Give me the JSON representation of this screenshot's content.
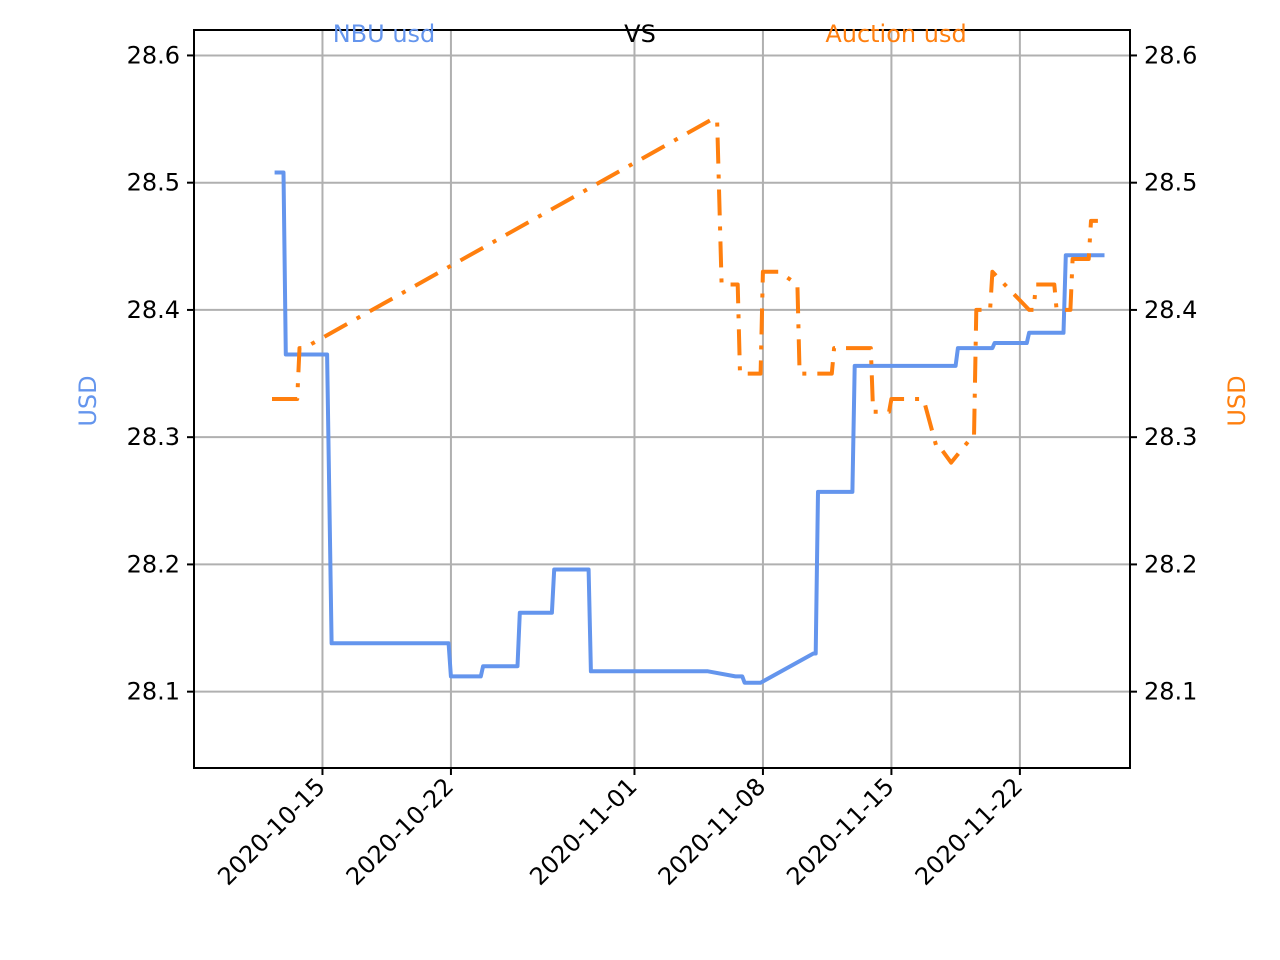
{
  "chart_data": {
    "type": "line",
    "header": {
      "left": "NBU usd",
      "middle": "VS",
      "right": "Auction usd"
    },
    "left_ylabel": "USD",
    "right_ylabel": "USD",
    "ylim": [
      28.04,
      28.62
    ],
    "yticks": [
      "28.1",
      "28.2",
      "28.3",
      "28.4",
      "28.5",
      "28.6"
    ],
    "xlim": [
      "2020-10-08",
      "2020-11-28"
    ],
    "xticks": [
      "2020-10-15",
      "2020-10-22",
      "2020-11-01",
      "2020-11-08",
      "2020-11-15",
      "2020-11-22"
    ],
    "grid": true,
    "colors": {
      "nbu": "#6495ed",
      "auction": "#ff7f0e",
      "axis": "#000000",
      "grid": "#b0b0b0"
    },
    "series": [
      {
        "name": "NBU usd",
        "style": "solid",
        "color": "#6495ed",
        "points": [
          [
            "2020-10-12 12:00",
            28.508
          ],
          [
            "2020-10-12 21:00",
            28.508
          ],
          [
            "2020-10-13 00:00",
            28.365
          ],
          [
            "2020-10-15 06:00",
            28.365
          ],
          [
            "2020-10-15 12:00",
            28.138
          ],
          [
            "2020-10-21 21:00",
            28.138
          ],
          [
            "2020-10-22 00:00",
            28.112
          ],
          [
            "2020-10-23 15:00",
            28.112
          ],
          [
            "2020-10-23 18:00",
            28.12
          ],
          [
            "2020-10-25 15:00",
            28.12
          ],
          [
            "2020-10-25 18:00",
            28.162
          ],
          [
            "2020-10-27 12:00",
            28.162
          ],
          [
            "2020-10-27 15:00",
            28.196
          ],
          [
            "2020-10-29 12:00",
            28.196
          ],
          [
            "2020-10-29 15:00",
            28.116
          ],
          [
            "2020-11-05 00:00",
            28.116
          ],
          [
            "2020-11-06 12:00",
            28.112
          ],
          [
            "2020-11-06 21:00",
            28.112
          ],
          [
            "2020-11-07 00:00",
            28.107
          ],
          [
            "2020-11-07 21:00",
            28.107
          ],
          [
            "2020-11-10 18:00",
            28.13
          ],
          [
            "2020-11-10 21:00",
            28.13
          ],
          [
            "2020-11-11 00:00",
            28.257
          ],
          [
            "2020-11-12 21:00",
            28.257
          ],
          [
            "2020-11-13 00:00",
            28.356
          ],
          [
            "2020-11-18 12:00",
            28.356
          ],
          [
            "2020-11-18 15:00",
            28.37
          ],
          [
            "2020-11-20 12:00",
            28.37
          ],
          [
            "2020-11-20 15:00",
            28.374
          ],
          [
            "2020-11-22 09:00",
            28.374
          ],
          [
            "2020-11-22 12:00",
            28.382
          ],
          [
            "2020-11-24 09:00",
            28.382
          ],
          [
            "2020-11-24 12:00",
            28.443
          ],
          [
            "2020-11-26 12:00",
            28.443
          ]
        ]
      },
      {
        "name": "Auction usd",
        "style": "dashdot",
        "color": "#ff7f0e",
        "points": [
          [
            "2020-10-12 06:00",
            28.33
          ],
          [
            "2020-10-13 15:00",
            28.33
          ],
          [
            "2020-10-13 18:00",
            28.37
          ],
          [
            "2020-10-14 00:00",
            28.37
          ],
          [
            "2020-11-05 06:00",
            28.55
          ],
          [
            "2020-11-05 12:00",
            28.55
          ],
          [
            "2020-11-05 18:00",
            28.42
          ],
          [
            "2020-11-06 15:00",
            28.42
          ],
          [
            "2020-11-06 18:00",
            28.35
          ],
          [
            "2020-11-07 21:00",
            28.35
          ],
          [
            "2020-11-08 00:00",
            28.43
          ],
          [
            "2020-11-08 21:00",
            28.43
          ],
          [
            "2020-11-09 21:00",
            28.42
          ],
          [
            "2020-11-10 00:00",
            28.35
          ],
          [
            "2020-11-11 18:00",
            28.35
          ],
          [
            "2020-11-11 21:00",
            28.37
          ],
          [
            "2020-11-13 21:00",
            28.37
          ],
          [
            "2020-11-14 00:00",
            28.32
          ],
          [
            "2020-11-14 21:00",
            28.32
          ],
          [
            "2020-11-15 00:00",
            28.33
          ],
          [
            "2020-11-16 18:00",
            28.33
          ],
          [
            "2020-11-17 12:00",
            28.29
          ],
          [
            "2020-11-17 18:00",
            28.29
          ],
          [
            "2020-11-18 06:00",
            28.28
          ],
          [
            "2020-11-19 09:00",
            28.3
          ],
          [
            "2020-11-19 12:00",
            28.3
          ],
          [
            "2020-11-19 15:00",
            28.4
          ],
          [
            "2020-11-20 09:00",
            28.4
          ],
          [
            "2020-11-20 12:00",
            28.43
          ],
          [
            "2020-11-22 12:00",
            28.4
          ],
          [
            "2020-11-22 18:00",
            28.4
          ],
          [
            "2020-11-22 21:00",
            28.42
          ],
          [
            "2020-11-23 21:00",
            28.42
          ],
          [
            "2020-11-24 00:00",
            28.4
          ],
          [
            "2020-11-24 18:00",
            28.4
          ],
          [
            "2020-11-24 21:00",
            28.44
          ],
          [
            "2020-11-25 18:00",
            28.44
          ],
          [
            "2020-11-25 21:00",
            28.47
          ],
          [
            "2020-11-26 06:00",
            28.47
          ]
        ]
      }
    ]
  }
}
